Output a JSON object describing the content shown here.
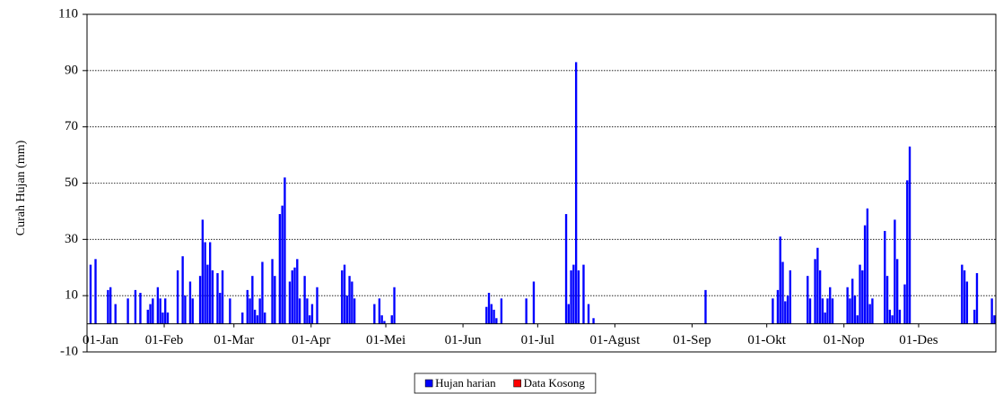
{
  "chart_data": {
    "type": "bar",
    "y_label": "Curah Hujan (mm)",
    "xlim": [
      1,
      366
    ],
    "xticks": [
      {
        "value": 1,
        "label": "01-Jan"
      },
      {
        "value": 32,
        "label": "01-Feb"
      },
      {
        "value": 60,
        "label": "01-Mar"
      },
      {
        "value": 91,
        "label": "01-Apr"
      },
      {
        "value": 121,
        "label": "01-Mei"
      },
      {
        "value": 152,
        "label": "01-Jun"
      },
      {
        "value": 182,
        "label": "01-Jul"
      },
      {
        "value": 213,
        "label": "01-Agust"
      },
      {
        "value": 244,
        "label": "01-Sep"
      },
      {
        "value": 274,
        "label": "01-Okt"
      },
      {
        "value": 305,
        "label": "01-Nop"
      },
      {
        "value": 335,
        "label": "01-Des"
      }
    ],
    "ylim": [
      -10,
      110
    ],
    "yticks": [
      -10,
      10,
      30,
      50,
      70,
      90,
      110
    ],
    "grid": true,
    "legend": "bottom",
    "x": [
      2,
      4,
      9,
      10,
      12,
      17,
      20,
      22,
      25,
      26,
      27,
      29,
      30,
      31,
      32,
      33,
      37,
      39,
      40,
      42,
      43,
      46,
      47,
      48,
      49,
      50,
      51,
      53,
      54,
      55,
      58,
      63,
      65,
      66,
      67,
      68,
      69,
      70,
      71,
      72,
      75,
      76,
      78,
      79,
      80,
      82,
      83,
      84,
      85,
      86,
      88,
      89,
      90,
      91,
      93,
      103,
      104,
      105,
      106,
      107,
      108,
      116,
      118,
      119,
      120,
      123,
      124,
      161,
      162,
      163,
      164,
      165,
      167,
      177,
      180,
      193,
      194,
      195,
      196,
      197,
      198,
      200,
      202,
      204,
      249,
      276,
      278,
      279,
      280,
      281,
      282,
      283,
      290,
      291,
      293,
      294,
      295,
      296,
      297,
      298,
      299,
      300,
      306,
      307,
      308,
      309,
      310,
      311,
      312,
      313,
      314,
      315,
      316,
      321,
      322,
      323,
      324,
      325,
      326,
      327,
      329,
      330,
      331,
      352,
      353,
      354,
      357,
      358,
      364,
      365
    ],
    "series": [
      {
        "name": "Hujan harian",
        "color": "#0000ff",
        "values": [
          21,
          23,
          12,
          13,
          7,
          9,
          12,
          11,
          5,
          7,
          9,
          13,
          9,
          4,
          9,
          4,
          19,
          24,
          10,
          15,
          9,
          17,
          37,
          29,
          21,
          29,
          19,
          18,
          11,
          19,
          9,
          4,
          12,
          9,
          17,
          5,
          3,
          9,
          22,
          4,
          23,
          17,
          39,
          42,
          52,
          15,
          19,
          20,
          23,
          9,
          17,
          9,
          3,
          7,
          13,
          19,
          21,
          10,
          17,
          15,
          9,
          7,
          9,
          3,
          1,
          3,
          13,
          6,
          11,
          7,
          5,
          2,
          9,
          9,
          15,
          39,
          7,
          19,
          21,
          93,
          19,
          21,
          7,
          2,
          12,
          9,
          12,
          31,
          22,
          8,
          10,
          19,
          17,
          9,
          23,
          27,
          19,
          9,
          4,
          9,
          13,
          9,
          13,
          9,
          16,
          10,
          3,
          21,
          19,
          35,
          41,
          7,
          9,
          33,
          17,
          5,
          3,
          37,
          23,
          5,
          14,
          51,
          63,
          21,
          19,
          15,
          5,
          18,
          9,
          3
        ]
      },
      {
        "name": "Data Kosong",
        "color": "#ff0000",
        "values": [
          null,
          null,
          null,
          null,
          null,
          null,
          null,
          null,
          null,
          null,
          null,
          null,
          null,
          null,
          null,
          null,
          null,
          null,
          null,
          null,
          null,
          null,
          null,
          null,
          null,
          null,
          null,
          null,
          null,
          null,
          null,
          null,
          null,
          null,
          null,
          null,
          null,
          null,
          null,
          null,
          null,
          null,
          null,
          null,
          null,
          null,
          null,
          null,
          null,
          null,
          null,
          null,
          null,
          null,
          null,
          null,
          null,
          null,
          null,
          null,
          null,
          null,
          null,
          null,
          null,
          null,
          null,
          null,
          null,
          null,
          null,
          null,
          null,
          null,
          null,
          null,
          null,
          null,
          null,
          null,
          null,
          null,
          null,
          null,
          null,
          null,
          null,
          null,
          null,
          null,
          null,
          null,
          null,
          null,
          null,
          null,
          null,
          null,
          null,
          null,
          null,
          null,
          null,
          null,
          null,
          null,
          null,
          null,
          null,
          null,
          null,
          null,
          null,
          null,
          null,
          null,
          null,
          null,
          null,
          null,
          null,
          null,
          null,
          null,
          null,
          null,
          null,
          null,
          null,
          null
        ]
      }
    ]
  }
}
